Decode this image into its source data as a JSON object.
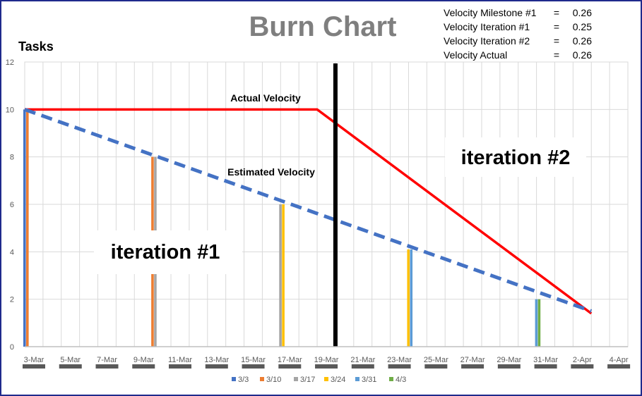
{
  "chart_data": {
    "type": "bar",
    "title": "Burn Chart",
    "ylabel": "Tasks",
    "ylim": [
      0,
      12
    ],
    "yticks": [
      0,
      2,
      4,
      6,
      8,
      10,
      12
    ],
    "xlim": [
      "2024-03-03",
      "2024-04-05"
    ],
    "xtick_labels": [
      "3-Mar",
      "5-Mar",
      "7-Mar",
      "9-Mar",
      "11-Mar",
      "13-Mar",
      "15-Mar",
      "17-Mar",
      "19-Mar",
      "21-Mar",
      "23-Mar",
      "25-Mar",
      "27-Mar",
      "29-Mar",
      "31-Mar",
      "2-Apr",
      "4-Apr"
    ],
    "grid": true,
    "legend_position": "bottom",
    "series": [
      {
        "name": "3/3",
        "color": "#4472c4",
        "points": [
          [
            "2024-03-03",
            10
          ]
        ]
      },
      {
        "name": "3/10",
        "color": "#ed7d31",
        "points": [
          [
            "2024-03-03",
            10
          ],
          [
            "2024-03-10",
            8
          ]
        ]
      },
      {
        "name": "3/17",
        "color": "#a5a5a5",
        "points": [
          [
            "2024-03-10",
            8
          ],
          [
            "2024-03-17",
            6
          ]
        ]
      },
      {
        "name": "3/24",
        "color": "#ffc000",
        "points": [
          [
            "2024-03-17",
            6
          ],
          [
            "2024-03-24",
            4.1
          ]
        ]
      },
      {
        "name": "3/31",
        "color": "#5b9bd5",
        "points": [
          [
            "2024-03-24",
            4.1
          ],
          [
            "2024-03-31",
            2
          ]
        ]
      },
      {
        "name": "4/3",
        "color": "#70ad47",
        "points": [
          [
            "2024-03-31",
            2
          ]
        ]
      }
    ],
    "lines": {
      "actual": {
        "color": "#ff0000",
        "points": [
          [
            "2024-03-03",
            10
          ],
          [
            "2024-03-19",
            10
          ],
          [
            "2024-04-03",
            1.4
          ]
        ]
      },
      "estimated": {
        "color": "#4472c4",
        "points": [
          [
            "2024-03-03",
            10
          ],
          [
            "2024-04-03",
            1.5
          ]
        ]
      },
      "marker": {
        "color": "#000000",
        "x": "2024-03-20"
      }
    },
    "annotations": {
      "actual_velocity": "Actual Velocity",
      "estimated_velocity": "Estimated Velocity",
      "iteration1": "iteration #1",
      "iteration2": "iteration #2"
    },
    "velocity_table": [
      {
        "label": "Velocity Milestone #1",
        "eq": "=",
        "value": "0.26"
      },
      {
        "label": "Velocity Iteration #1",
        "eq": "=",
        "value": "0.25"
      },
      {
        "label": "Velocity Iteration #2",
        "eq": "=",
        "value": "0.26"
      },
      {
        "label": "Velocity Actual",
        "eq": "=",
        "value": "0.26"
      }
    ]
  }
}
